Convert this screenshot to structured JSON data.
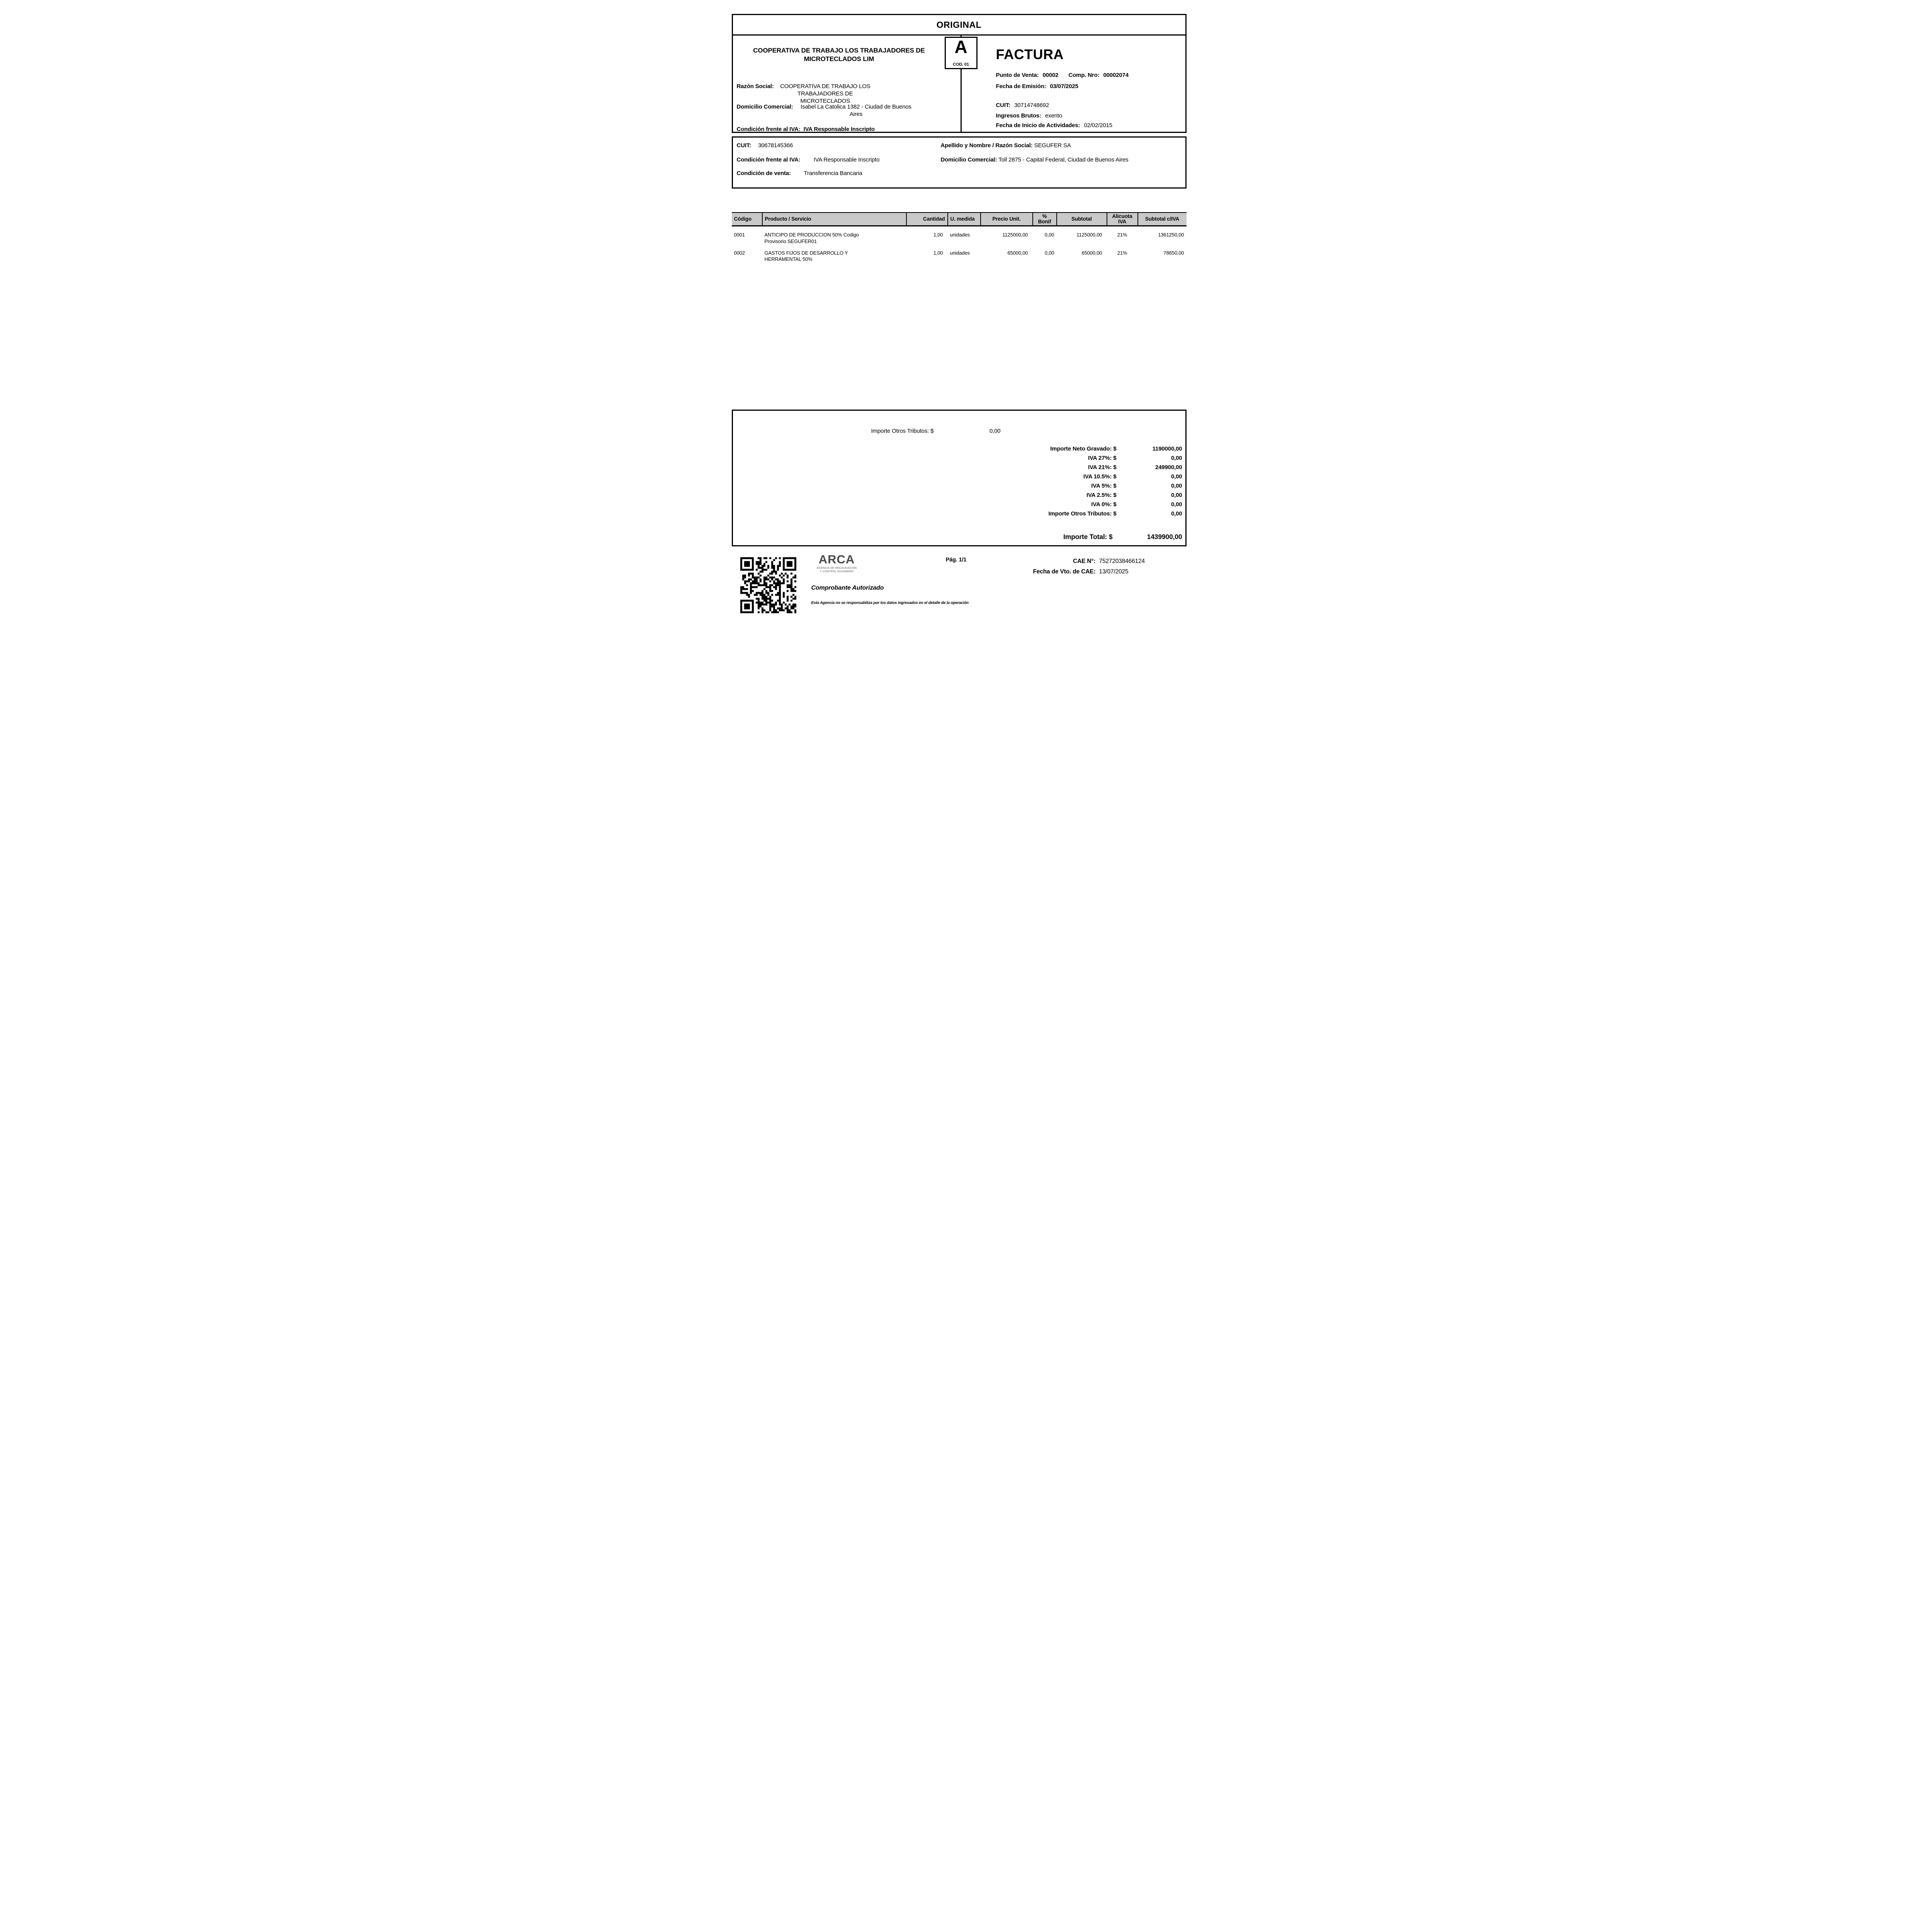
{
  "document": {
    "copy_label": "ORIGINAL",
    "type": "FACTURA",
    "letter": "A",
    "letter_code": "COD. 01",
    "page_label": "Pág. 1/1"
  },
  "seller": {
    "company_name": "COOPERATIVA DE TRABAJO LOS TRABAJADORES DE MICROTECLADOS LIM",
    "razon_social_label": "Razón Social:",
    "razon_social": "COOPERATIVA DE TRABAJO LOS TRABAJADORES DE MICROTECLADOS",
    "domicilio_label": "Domicilio Comercial:",
    "domicilio": "Isabel La Catolica 1382 - Ciudad de Buenos Aires",
    "condicion_iva_label": "Condición frente al IVA:",
    "condicion_iva": "IVA Responsable Inscripto"
  },
  "invoice_meta": {
    "punto_venta_label": "Punto de Venta:",
    "punto_venta": "00002",
    "comp_nro_label": "Comp. Nro:",
    "comp_nro": "00002074",
    "fecha_emision_label": "Fecha de Emisión:",
    "fecha_emision": "03/07/2025",
    "cuit_label": "CUIT:",
    "cuit": "30714748692",
    "ingresos_brutos_label": "Ingresos Brutos:",
    "ingresos_brutos": "exento",
    "inicio_actividades_label": "Fecha de Inicio de Actividades:",
    "inicio_actividades": "02/02/2015"
  },
  "customer": {
    "cuit_label": "CUIT:",
    "cuit": "30678145366",
    "nombre_label": "Apellido y Nombre / Razón Social:",
    "nombre": "SEGUFER SA",
    "condicion_iva_label": "Condición frente al IVA:",
    "condicion_iva": "IVA Responsable Inscripto",
    "domicilio_label": "Domicilio Comercial:",
    "domicilio": "Toll 2875 - Capital Federal, Ciudad de Buenos Aires",
    "condicion_venta_label": "Condición de venta:",
    "condicion_venta": "Transferencia Bancaria"
  },
  "items": {
    "headers": {
      "codigo": "Código",
      "producto": "Producto / Servicio",
      "cantidad": "Cantidad",
      "u_medida": "U. medida",
      "precio_unit": "Precio Unit.",
      "bonif": "% Bonif",
      "subtotal": "Subtotal",
      "alicuota": "Alicuota IVA",
      "subtotal_iva": "Subtotal c/IVA"
    },
    "rows": [
      {
        "codigo": "0001",
        "producto": "ANTICIPO DE PRODUCCION 50% Codigo Provisorio SEGUFER01",
        "cantidad": "1,00",
        "u_medida": "unidades",
        "precio_unit": "1125000,00",
        "bonif": "0,00",
        "subtotal": "1125000,00",
        "alicuota": "21%",
        "subtotal_iva": "1361250,00"
      },
      {
        "codigo": "0002",
        "producto": "GASTOS FIJOS DE DESARROLLO Y HERRAMENTAL 50%",
        "cantidad": "1,00",
        "u_medida": "unidades",
        "precio_unit": "65000,00",
        "bonif": "0,00",
        "subtotal": "65000,00",
        "alicuota": "21%",
        "subtotal_iva": "78650,00"
      }
    ]
  },
  "totals": {
    "otros_tributos_inline_label": "Importe Otros Tributos: $",
    "otros_tributos_inline_value": "0,00",
    "rows": [
      {
        "label": "Importe Neto Gravado: $",
        "value": "1190000,00"
      },
      {
        "label": "IVA 27%: $",
        "value": "0,00"
      },
      {
        "label": "IVA 21%: $",
        "value": "249900,00"
      },
      {
        "label": "IVA 10.5%: $",
        "value": "0,00"
      },
      {
        "label": "IVA 5%: $",
        "value": "0,00"
      },
      {
        "label": "IVA 2.5%: $",
        "value": "0,00"
      },
      {
        "label": "IVA 0%: $",
        "value": "0,00"
      },
      {
        "label": "Importe Otros Tributos: $",
        "value": "0,00"
      }
    ],
    "total_label": "Importe Total: $",
    "total_value": "1439900,00"
  },
  "footer": {
    "arca_word": "ARCA",
    "arca_sub_line1": "AGENCIA DE RECAUDACIÓN",
    "arca_sub_line2": "Y CONTROL ADUANERO",
    "cae_label": "CAE N°:",
    "cae": "75272038466124",
    "cae_vto_label": "Fecha de Vto. de CAE:",
    "cae_vto": "13/07/2025",
    "comprobante_autorizado": "Comprobante Autorizado",
    "disclaimer": "Esta Agencia no se responsabiliza por los datos ingresados en el detalle de la operación"
  },
  "colors": {
    "table_header_bg": "#c9c9c9",
    "arca_gray": "#4a4a4a",
    "text": "#000000",
    "background": "#ffffff"
  }
}
